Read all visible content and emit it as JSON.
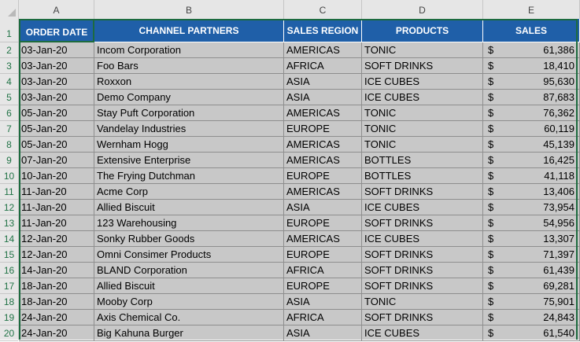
{
  "spreadsheet": {
    "column_letters": [
      "A",
      "B",
      "C",
      "D",
      "E"
    ],
    "row_numbers": [
      "1",
      "2",
      "3",
      "4",
      "5",
      "6",
      "7",
      "8",
      "9",
      "10",
      "11",
      "12",
      "13",
      "14",
      "15",
      "16",
      "17",
      "18",
      "19",
      "20"
    ],
    "headers": [
      "ORDER DATE",
      "CHANNEL PARTNERS",
      "SALES REGION",
      "PRODUCTS",
      "SALES"
    ],
    "currency_symbol": "$",
    "rows": [
      {
        "date": "03-Jan-20",
        "partner": "Incom Corporation",
        "region": "AMERICAS",
        "product": "TONIC",
        "sales": "61,386"
      },
      {
        "date": "03-Jan-20",
        "partner": "Foo Bars",
        "region": "AFRICA",
        "product": "SOFT DRINKS",
        "sales": "18,410"
      },
      {
        "date": "03-Jan-20",
        "partner": "Roxxon",
        "region": "ASIA",
        "product": "ICE CUBES",
        "sales": "95,630"
      },
      {
        "date": "03-Jan-20",
        "partner": "Demo Company",
        "region": "ASIA",
        "product": "ICE CUBES",
        "sales": "87,683"
      },
      {
        "date": "05-Jan-20",
        "partner": "Stay Puft Corporation",
        "region": "AMERICAS",
        "product": "TONIC",
        "sales": "76,362"
      },
      {
        "date": "05-Jan-20",
        "partner": "Vandelay Industries",
        "region": "EUROPE",
        "product": "TONIC",
        "sales": "60,119"
      },
      {
        "date": "05-Jan-20",
        "partner": "Wernham Hogg",
        "region": "AMERICAS",
        "product": "TONIC",
        "sales": "45,139"
      },
      {
        "date": "07-Jan-20",
        "partner": "Extensive Enterprise",
        "region": "AMERICAS",
        "product": "BOTTLES",
        "sales": "16,425"
      },
      {
        "date": "10-Jan-20",
        "partner": "The Frying Dutchman",
        "region": "EUROPE",
        "product": "BOTTLES",
        "sales": "41,118"
      },
      {
        "date": "11-Jan-20",
        "partner": "Acme Corp",
        "region": "AMERICAS",
        "product": "SOFT DRINKS",
        "sales": "13,406"
      },
      {
        "date": "11-Jan-20",
        "partner": "Allied Biscuit",
        "region": "ASIA",
        "product": "ICE CUBES",
        "sales": "73,954"
      },
      {
        "date": "11-Jan-20",
        "partner": "123 Warehousing",
        "region": "EUROPE",
        "product": "SOFT DRINKS",
        "sales": "54,956"
      },
      {
        "date": "12-Jan-20",
        "partner": "Sonky Rubber Goods",
        "region": "AMERICAS",
        "product": "ICE CUBES",
        "sales": "13,307"
      },
      {
        "date": "12-Jan-20",
        "partner": "Omni Consimer Products",
        "region": "EUROPE",
        "product": "SOFT DRINKS",
        "sales": "71,397"
      },
      {
        "date": "14-Jan-20",
        "partner": "BLAND Corporation",
        "region": "AFRICA",
        "product": "SOFT DRINKS",
        "sales": "61,439"
      },
      {
        "date": "18-Jan-20",
        "partner": "Allied Biscuit",
        "region": "EUROPE",
        "product": "SOFT DRINKS",
        "sales": "69,281"
      },
      {
        "date": "18-Jan-20",
        "partner": "Mooby Corp",
        "region": "ASIA",
        "product": "TONIC",
        "sales": "75,901"
      },
      {
        "date": "24-Jan-20",
        "partner": "Axis Chemical Co.",
        "region": "AFRICA",
        "product": "SOFT DRINKS",
        "sales": "24,843"
      },
      {
        "date": "24-Jan-20",
        "partner": "Big Kahuna Burger",
        "region": "ASIA",
        "product": "ICE CUBES",
        "sales": "61,540"
      }
    ]
  }
}
